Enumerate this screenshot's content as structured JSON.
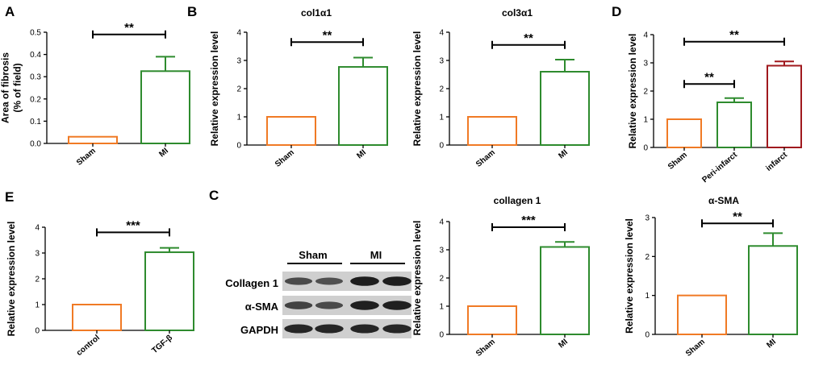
{
  "panel_letters": {
    "A": "A",
    "B": "B",
    "C": "C",
    "D": "D",
    "E": "E"
  },
  "colors": {
    "sham": "#f07a25",
    "green": "#2e8b2e",
    "red": "#a0191e"
  },
  "chart_data": [
    {
      "id": "A",
      "type": "bar",
      "title": "",
      "ylabel_lines": [
        "Area of fibrosis",
        "(% of field)"
      ],
      "categories": [
        "Sham",
        "MI"
      ],
      "values": [
        0.03,
        0.325
      ],
      "errors": [
        0,
        0.065
      ],
      "colors": [
        "#f07a25",
        "#2e8b2e"
      ],
      "ylim": [
        0,
        0.5
      ],
      "yticks": [
        "0.0",
        "0.1",
        "0.2",
        "0.3",
        "0.4",
        "0.5"
      ],
      "significance": [
        {
          "from": 0,
          "to": 1,
          "label": "**",
          "level": 0.49
        }
      ]
    },
    {
      "id": "B1",
      "type": "bar",
      "title": "col1α1",
      "ylabel_lines": [
        "Relative expression level"
      ],
      "categories": [
        "Sham",
        "MI"
      ],
      "values": [
        1,
        2.77
      ],
      "errors": [
        0,
        0.33
      ],
      "colors": [
        "#f07a25",
        "#2e8b2e"
      ],
      "ylim": [
        0,
        4
      ],
      "yticks": [
        "0",
        "1",
        "2",
        "3",
        "4"
      ],
      "significance": [
        {
          "from": 0,
          "to": 1,
          "label": "**",
          "level": 3.65
        }
      ]
    },
    {
      "id": "B2",
      "type": "bar",
      "title": "col3α1",
      "ylabel_lines": [
        "Relative expression level"
      ],
      "categories": [
        "Sham",
        "MI"
      ],
      "values": [
        1,
        2.6
      ],
      "errors": [
        0,
        0.43
      ],
      "colors": [
        "#f07a25",
        "#2e8b2e"
      ],
      "ylim": [
        0,
        4
      ],
      "yticks": [
        "0",
        "1",
        "2",
        "3",
        "4"
      ],
      "significance": [
        {
          "from": 0,
          "to": 1,
          "label": "**",
          "level": 3.55
        }
      ]
    },
    {
      "id": "D",
      "type": "bar",
      "title": "",
      "ylabel_lines": [
        "Relative expression level"
      ],
      "categories": [
        "Sham",
        "Peri-infarct",
        "infarct"
      ],
      "values": [
        1,
        1.6,
        2.9
      ],
      "errors": [
        0,
        0.15,
        0.15
      ],
      "colors": [
        "#f07a25",
        "#2e8b2e",
        "#a0191e"
      ],
      "ylim": [
        0,
        4
      ],
      "yticks": [
        "0",
        "1",
        "2",
        "3",
        "4"
      ],
      "significance": [
        {
          "from": 0,
          "to": 2,
          "label": "**",
          "level": 3.75
        },
        {
          "from": 0,
          "to": 1,
          "label": "**",
          "level": 2.25
        }
      ]
    },
    {
      "id": "E",
      "type": "bar",
      "title": "",
      "ylabel_lines": [
        "Relative expression level"
      ],
      "categories": [
        "control",
        "TGF-β"
      ],
      "values": [
        1,
        3.03
      ],
      "errors": [
        0,
        0.17
      ],
      "colors": [
        "#f07a25",
        "#2e8b2e"
      ],
      "ylim": [
        0,
        4
      ],
      "yticks": [
        "0",
        "1",
        "2",
        "3",
        "4"
      ],
      "significance": [
        {
          "from": 0,
          "to": 1,
          "label": "***",
          "level": 3.8
        }
      ]
    },
    {
      "id": "C1",
      "type": "bar",
      "title": "collagen 1",
      "ylabel_lines": [
        "Relative expression level"
      ],
      "categories": [
        "Sham",
        "MI"
      ],
      "values": [
        1,
        3.1
      ],
      "errors": [
        0,
        0.18
      ],
      "colors": [
        "#f07a25",
        "#2e8b2e"
      ],
      "ylim": [
        0,
        4
      ],
      "yticks": [
        "0",
        "1",
        "2",
        "3",
        "4"
      ],
      "significance": [
        {
          "from": 0,
          "to": 1,
          "label": "***",
          "level": 3.8
        }
      ]
    },
    {
      "id": "C2",
      "type": "bar",
      "title": "α-SMA",
      "ylabel_lines": [
        "Relative expression level"
      ],
      "categories": [
        "Sham",
        "MI"
      ],
      "values": [
        1,
        2.27
      ],
      "errors": [
        0,
        0.33
      ],
      "colors": [
        "#f07a25",
        "#2e8b2e"
      ],
      "ylim": [
        0,
        3
      ],
      "yticks": [
        "0",
        "1",
        "2",
        "3"
      ],
      "significance": [
        {
          "from": 0,
          "to": 1,
          "label": "**",
          "level": 2.85
        }
      ]
    }
  ],
  "blot": {
    "group_labels": [
      "Sham",
      "MI"
    ],
    "rows": [
      {
        "label": "Collagen 1",
        "intensities": [
          0.55,
          0.5,
          0.92,
          0.92
        ]
      },
      {
        "label": "α-SMA",
        "intensities": [
          0.62,
          0.55,
          0.9,
          0.9
        ]
      },
      {
        "label": "GAPDH",
        "intensities": [
          0.85,
          0.85,
          0.85,
          0.85
        ]
      }
    ]
  }
}
